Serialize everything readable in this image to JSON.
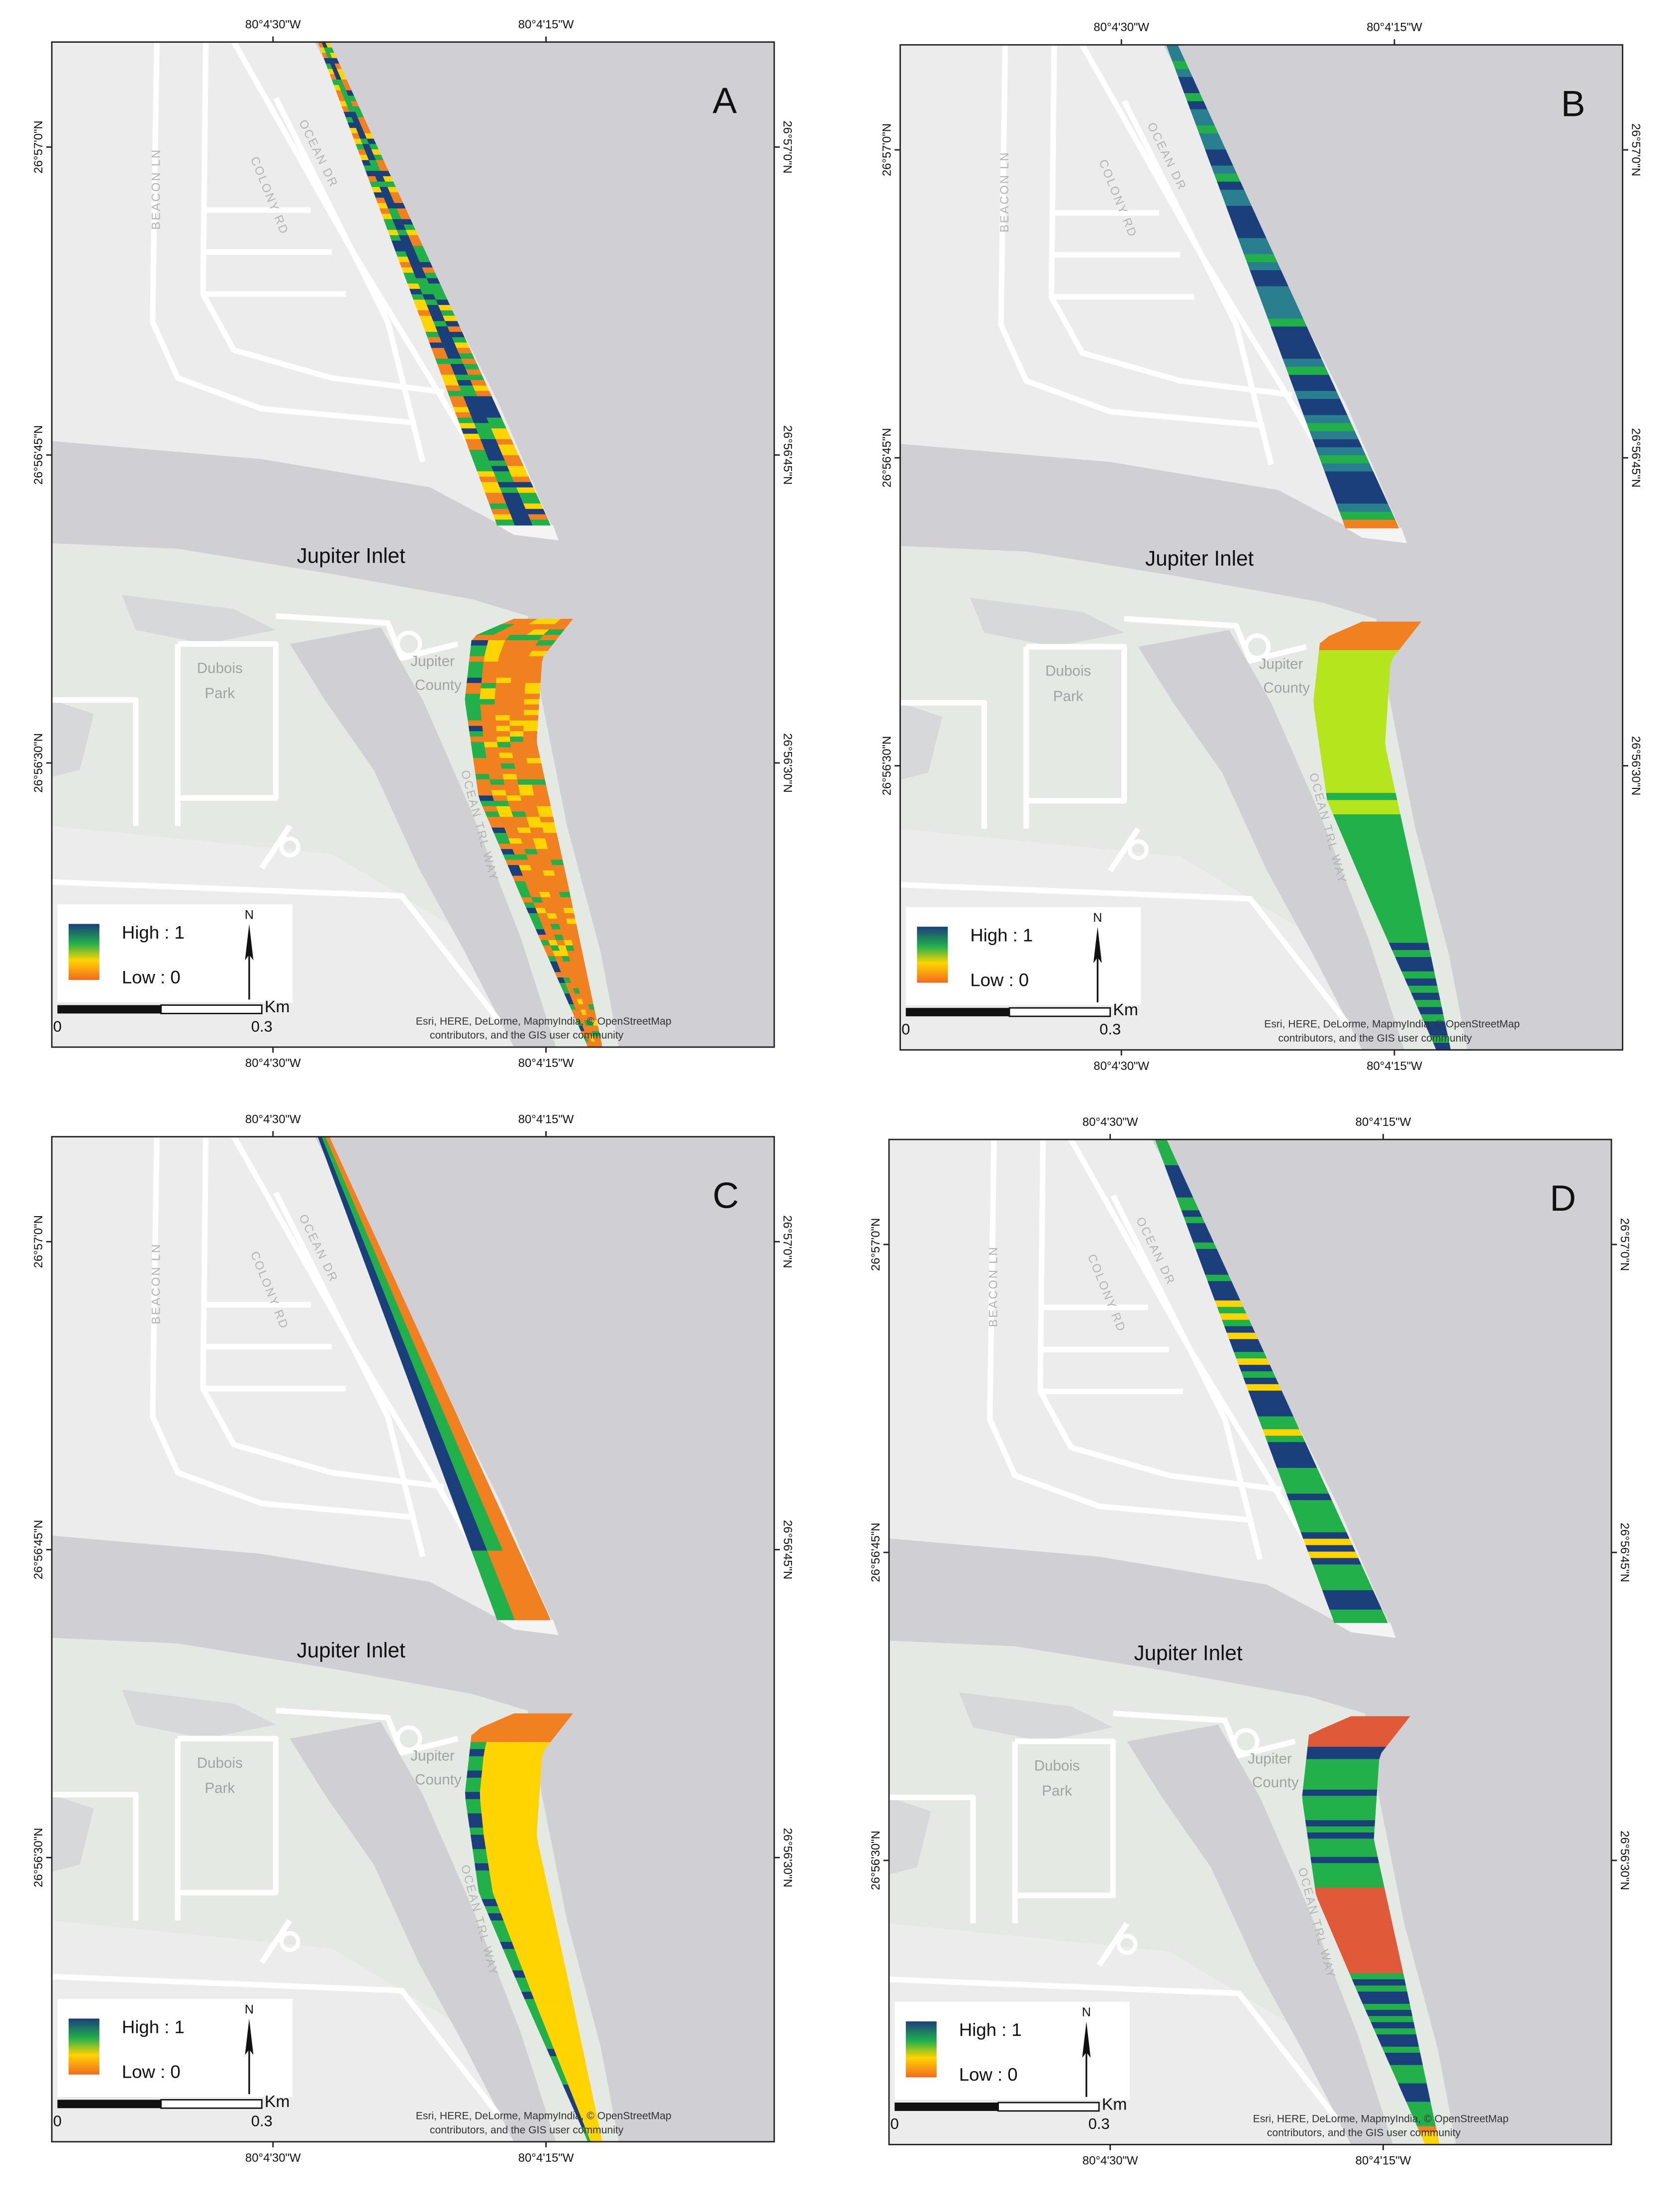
{
  "map": {
    "lon_labels": [
      "80°4'30\"W",
      "80°4'15\"W"
    ],
    "lat_labels": [
      "26°57'0\"N",
      "26°56'45\"N",
      "26°56'30\"N"
    ],
    "places": {
      "inlet": "Jupiter Inlet",
      "park": [
        "Dubois",
        "Park"
      ],
      "county": [
        "Jupiter",
        "County"
      ]
    },
    "streets": [
      "BEACON LN",
      "COLONY RD",
      "OCEAN DR",
      "OCEAN TRL WAY"
    ],
    "legend": {
      "high": "High : 1",
      "low": "Low : 0"
    },
    "north": "N",
    "scale": {
      "start": 0,
      "end": 0.3,
      "unit": "Km"
    },
    "attribution": [
      "Esri, HERE, DeLorme, MapmyIndia, © OpenStreetMap",
      "contributors, and the GIS user community"
    ]
  },
  "panels": [
    {
      "label": "A"
    },
    {
      "label": "B"
    },
    {
      "label": "C"
    },
    {
      "label": "D"
    }
  ]
}
